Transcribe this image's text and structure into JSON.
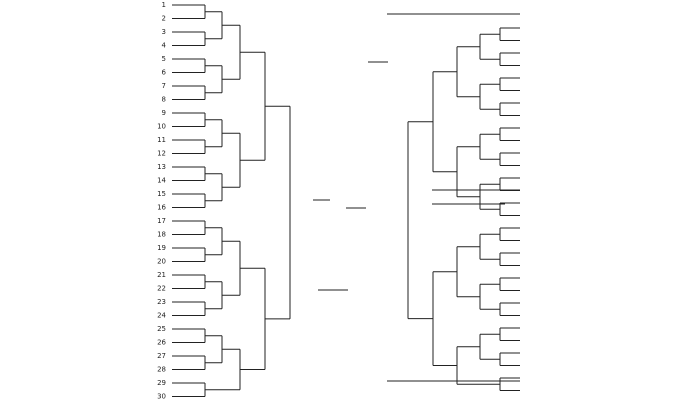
{
  "bracket": {
    "seeds": [
      "1",
      "2",
      "3",
      "4",
      "5",
      "6",
      "7",
      "8",
      "9",
      "10",
      "11",
      "12",
      "13",
      "14",
      "15",
      "16",
      "17",
      "18",
      "19",
      "20",
      "21",
      "22",
      "23",
      "24",
      "25",
      "26",
      "27",
      "28",
      "29",
      "30"
    ]
  }
}
